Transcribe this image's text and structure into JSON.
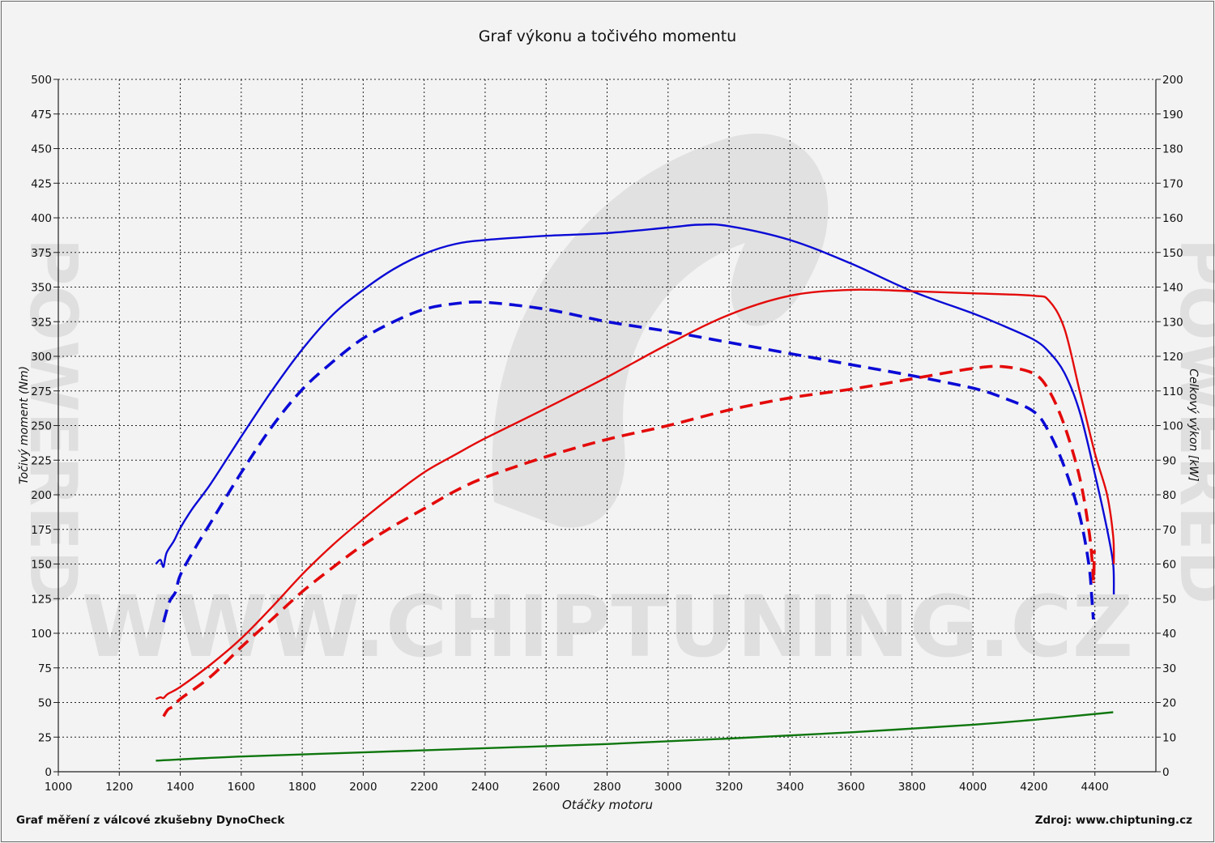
{
  "title": "Graf výkonu a točivého momentu",
  "footer_left": "Graf měření z válcové zkušebny DynoCheck",
  "footer_right": "Zdroj: www.chiptuning.cz",
  "watermark_text": "WWW.CHIPTUNING.CZ",
  "watermark_side_text": "POWERED",
  "chart_data": {
    "type": "line",
    "xlabel": "Otáčky motoru",
    "ylabel_left": "Točivý moment (Nm)",
    "ylabel_right": "Celkový výkon [kW]",
    "xlim": [
      1000,
      4600
    ],
    "ylim_left": [
      0,
      500
    ],
    "ylim_right": [
      0,
      200
    ],
    "x_ticks": [
      1000,
      1200,
      1400,
      1600,
      1800,
      2000,
      2200,
      2400,
      2600,
      2800,
      3000,
      3200,
      3400,
      3600,
      3800,
      4000,
      4200,
      4400
    ],
    "y_ticks_left": [
      0,
      25,
      50,
      75,
      100,
      125,
      150,
      175,
      200,
      225,
      250,
      275,
      300,
      325,
      350,
      375,
      400,
      425,
      450,
      475,
      500
    ],
    "y_ticks_right": [
      0,
      10,
      20,
      30,
      40,
      50,
      60,
      70,
      80,
      90,
      100,
      110,
      120,
      130,
      140,
      150,
      160,
      170,
      180,
      190,
      200
    ],
    "grid": true,
    "series": [
      {
        "color": "#0a0ad6",
        "style": "solid",
        "axis": "left",
        "points": [
          [
            1320,
            150
          ],
          [
            1335,
            153
          ],
          [
            1345,
            148
          ],
          [
            1355,
            158
          ],
          [
            1380,
            167
          ],
          [
            1400,
            176
          ],
          [
            1440,
            190
          ],
          [
            1500,
            208
          ],
          [
            1600,
            242
          ],
          [
            1700,
            275
          ],
          [
            1800,
            305
          ],
          [
            1900,
            330
          ],
          [
            2000,
            348
          ],
          [
            2100,
            363
          ],
          [
            2200,
            374
          ],
          [
            2300,
            381
          ],
          [
            2400,
            384
          ],
          [
            2600,
            387
          ],
          [
            2800,
            389
          ],
          [
            3000,
            393
          ],
          [
            3100,
            395
          ],
          [
            3200,
            394
          ],
          [
            3400,
            384
          ],
          [
            3600,
            367
          ],
          [
            3800,
            347
          ],
          [
            4000,
            331
          ],
          [
            4100,
            322
          ],
          [
            4200,
            312
          ],
          [
            4250,
            303
          ],
          [
            4300,
            288
          ],
          [
            4350,
            260
          ],
          [
            4400,
            215
          ],
          [
            4440,
            175
          ],
          [
            4460,
            150
          ],
          [
            4462,
            128
          ]
        ]
      },
      {
        "color": "#0a0ad6",
        "style": "dashed",
        "axis": "left",
        "points": [
          [
            1345,
            108
          ],
          [
            1365,
            123
          ],
          [
            1385,
            130
          ],
          [
            1400,
            142
          ],
          [
            1450,
            162
          ],
          [
            1500,
            180
          ],
          [
            1600,
            216
          ],
          [
            1700,
            249
          ],
          [
            1800,
            276
          ],
          [
            1900,
            296
          ],
          [
            2000,
            313
          ],
          [
            2100,
            325
          ],
          [
            2200,
            334
          ],
          [
            2300,
            338
          ],
          [
            2400,
            339
          ],
          [
            2600,
            334
          ],
          [
            2800,
            325
          ],
          [
            3000,
            318
          ],
          [
            3200,
            310
          ],
          [
            3400,
            302
          ],
          [
            3600,
            294
          ],
          [
            3800,
            286
          ],
          [
            4000,
            277
          ],
          [
            4100,
            270
          ],
          [
            4200,
            260
          ],
          [
            4250,
            245
          ],
          [
            4300,
            220
          ],
          [
            4350,
            185
          ],
          [
            4380,
            150
          ],
          [
            4390,
            125
          ],
          [
            4395,
            110
          ]
        ]
      },
      {
        "color": "#e40a0a",
        "style": "solid",
        "axis": "right",
        "points": [
          [
            1320,
            21
          ],
          [
            1335,
            21.5
          ],
          [
            1345,
            21.3
          ],
          [
            1360,
            22.5
          ],
          [
            1400,
            24.5
          ],
          [
            1500,
            31
          ],
          [
            1600,
            38.5
          ],
          [
            1700,
            47.5
          ],
          [
            1800,
            57
          ],
          [
            1900,
            65.5
          ],
          [
            2000,
            73
          ],
          [
            2100,
            80
          ],
          [
            2200,
            86.5
          ],
          [
            2300,
            91.5
          ],
          [
            2400,
            96.3
          ],
          [
            2600,
            105
          ],
          [
            2800,
            114
          ],
          [
            3000,
            123.5
          ],
          [
            3200,
            132
          ],
          [
            3400,
            137.5
          ],
          [
            3600,
            139.2
          ],
          [
            3800,
            138.8
          ],
          [
            4000,
            138.2
          ],
          [
            4200,
            137.5
          ],
          [
            4250,
            136
          ],
          [
            4300,
            128
          ],
          [
            4350,
            110
          ],
          [
            4400,
            92
          ],
          [
            4440,
            80
          ],
          [
            4460,
            68
          ],
          [
            4462,
            60
          ]
        ]
      },
      {
        "color": "#e40a0a",
        "style": "dashed",
        "axis": "right",
        "points": [
          [
            1345,
            16
          ],
          [
            1360,
            18
          ],
          [
            1380,
            19
          ],
          [
            1400,
            21
          ],
          [
            1500,
            27.5
          ],
          [
            1600,
            36
          ],
          [
            1700,
            44
          ],
          [
            1800,
            52
          ],
          [
            1900,
            59
          ],
          [
            2000,
            65.5
          ],
          [
            2100,
            71
          ],
          [
            2200,
            76
          ],
          [
            2300,
            81
          ],
          [
            2400,
            85
          ],
          [
            2600,
            91
          ],
          [
            2800,
            96
          ],
          [
            3000,
            100
          ],
          [
            3200,
            104.5
          ],
          [
            3400,
            108
          ],
          [
            3600,
            110.5
          ],
          [
            3800,
            113.5
          ],
          [
            4000,
            116.5
          ],
          [
            4100,
            117
          ],
          [
            4200,
            115
          ],
          [
            4250,
            110
          ],
          [
            4300,
            100
          ],
          [
            4350,
            85
          ],
          [
            4380,
            70
          ],
          [
            4392,
            60
          ],
          [
            4396,
            55
          ],
          [
            4398,
            64
          ]
        ]
      },
      {
        "color": "#0e760e",
        "style": "solid",
        "axis": "left",
        "points": [
          [
            1320,
            8
          ],
          [
            1600,
            11
          ],
          [
            2000,
            14
          ],
          [
            2400,
            17
          ],
          [
            2800,
            20
          ],
          [
            3200,
            24
          ],
          [
            3600,
            28.5
          ],
          [
            4000,
            34
          ],
          [
            4200,
            37.5
          ],
          [
            4460,
            43
          ]
        ]
      }
    ]
  }
}
